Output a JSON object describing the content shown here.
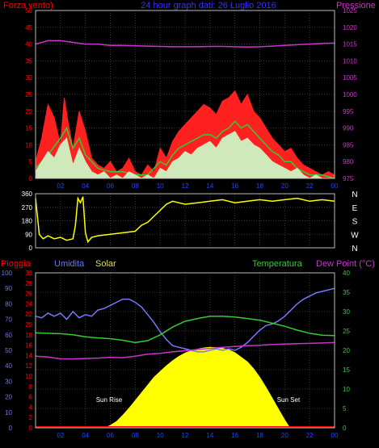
{
  "header": {
    "left_label": "Forza vento)",
    "title": "24 hour graph dati: 26 Luglio 2016",
    "right_label": "Pressione"
  },
  "colors": {
    "background": "#000000",
    "grid": "#3a3a3a",
    "wind_gust": "#ff2020",
    "wind_avg": "#33cc33",
    "wind_speed": "#ccffcc",
    "pressure": "#cc33cc",
    "direction": "#ffff00",
    "humidity": "#7777ff",
    "temperature": "#33cc33",
    "dew_point": "#cc33cc",
    "solar": "#ffff00",
    "rain": "#ff0000",
    "left_axis_text": "#ff0000",
    "right_axis_text": "#cc33cc",
    "title_text": "#3333ff",
    "humidity_axis_text": "#6677ff",
    "temp_axis_text": "#33cc33",
    "time_axis_text": "#2244ff"
  },
  "chart_data": [
    {
      "type": "line",
      "name": "wind-pressure",
      "x_ticks": [
        "02",
        "04",
        "06",
        "08",
        "10",
        "12",
        "14",
        "16",
        "18",
        "20",
        "22",
        "00"
      ],
      "y_left_ticks": [
        "0",
        "5",
        "10",
        "15",
        "20",
        "25",
        "30",
        "35",
        "40",
        "45",
        "50"
      ],
      "y_right_ticks": [
        "975",
        "980",
        "985",
        "990",
        "995",
        "1000",
        "1005",
        "1010",
        "1015",
        "1020",
        "1025"
      ],
      "y_left_range": [
        0,
        50
      ],
      "y_right_range": [
        975,
        1025
      ],
      "x_range": [
        0,
        24
      ],
      "series": [
        {
          "name": "Forza vento)",
          "axis": "left",
          "style": "gust",
          "x": [
            0,
            0.5,
            1,
            1.5,
            2,
            2.3,
            2.6,
            3,
            3.5,
            4,
            4.5,
            5,
            5.5,
            6,
            6.5,
            7,
            7.5,
            8,
            8.5,
            9,
            9.5,
            10,
            10.5,
            11,
            11.5,
            12,
            12.5,
            13,
            13.5,
            14,
            14.5,
            15,
            15.5,
            16,
            16.5,
            17,
            17.5,
            18,
            18.5,
            19,
            19.5,
            20,
            20.5,
            21,
            21.5,
            22,
            22.5,
            23,
            23.5,
            24
          ],
          "values": [
            5,
            12,
            22,
            18,
            10,
            24,
            17,
            9,
            20,
            14,
            6,
            4,
            3,
            5,
            2,
            3,
            6,
            2,
            1,
            4,
            2,
            9,
            6,
            11,
            14,
            16,
            18,
            20,
            22,
            21,
            19,
            23,
            24,
            26,
            22,
            25,
            20,
            18,
            15,
            12,
            10,
            8,
            9,
            6,
            4,
            3,
            2,
            1,
            2,
            1
          ]
        },
        {
          "name": "",
          "axis": "left",
          "style": "avg",
          "x": [
            0,
            1,
            2,
            2.5,
            3,
            3.5,
            4,
            5,
            6,
            7,
            8,
            9,
            10,
            10.5,
            11,
            11.5,
            12,
            12.5,
            13,
            13.5,
            14,
            14.5,
            15,
            15.5,
            16,
            16.5,
            17,
            17.5,
            18,
            18.5,
            19,
            19.5,
            20,
            20.5,
            21,
            21.5,
            22,
            23,
            24
          ],
          "values": [
            3,
            7,
            12,
            15,
            9,
            12,
            7,
            3,
            2,
            2,
            1,
            1,
            5,
            4,
            7,
            9,
            10,
            11,
            12,
            13,
            13,
            12,
            14,
            15,
            17,
            15,
            16,
            14,
            12,
            10,
            8,
            7,
            5,
            5,
            3,
            2,
            1,
            1,
            0
          ]
        },
        {
          "name": "",
          "axis": "left",
          "style": "speed",
          "x": [
            0,
            0.5,
            1,
            1.5,
            2,
            2.5,
            3,
            3.5,
            4,
            4.5,
            5,
            5.5,
            6,
            6.5,
            7,
            7.5,
            8,
            8.5,
            9,
            9.5,
            10,
            10.5,
            11,
            11.5,
            12,
            12.5,
            13,
            13.5,
            14,
            14.5,
            15,
            15.5,
            16,
            16.5,
            17,
            17.5,
            18,
            18.5,
            19,
            19.5,
            20,
            20.5,
            21,
            21.5,
            22,
            22.5,
            23,
            23.5,
            24
          ],
          "values": [
            2,
            5,
            8,
            6,
            10,
            12,
            4,
            9,
            5,
            2,
            1,
            2,
            0,
            1,
            0,
            2,
            1,
            0,
            1,
            0,
            3,
            2,
            5,
            6,
            8,
            7,
            9,
            10,
            11,
            9,
            12,
            13,
            14,
            11,
            12,
            10,
            9,
            7,
            5,
            4,
            3,
            2,
            3,
            1,
            0,
            1,
            0,
            0,
            0
          ]
        },
        {
          "name": "Pressione",
          "axis": "right",
          "style": "pressure",
          "x": [
            0,
            1,
            2,
            3,
            4,
            5,
            6,
            7,
            8,
            9,
            10,
            11,
            12,
            13,
            14,
            15,
            16,
            17,
            18,
            19,
            20,
            21,
            22,
            23,
            24
          ],
          "values": [
            1015,
            1016,
            1016,
            1015.5,
            1015,
            1015,
            1014.6,
            1014.6,
            1014.5,
            1014.4,
            1014.3,
            1014.2,
            1014.2,
            1014.2,
            1014.3,
            1014.3,
            1014.2,
            1014.1,
            1014.2,
            1014.4,
            1014.6,
            1014.8,
            1015,
            1015.2,
            1015.3
          ]
        }
      ]
    },
    {
      "type": "line",
      "name": "wind-direction",
      "x_range": [
        0,
        24
      ],
      "y_range": [
        0,
        360
      ],
      "y_left_ticks": [
        "0",
        "90",
        "180",
        "270",
        "360"
      ],
      "y_right_ticks": [
        "N",
        "W",
        "S",
        "E",
        "N"
      ],
      "series": [
        {
          "name": "",
          "style": "direction",
          "x": [
            0,
            0.3,
            0.6,
            1,
            1.5,
            2,
            2.5,
            3,
            3.2,
            3.4,
            3.6,
            3.8,
            4,
            4.2,
            4.5,
            5,
            6,
            7,
            8,
            8.5,
            9,
            9.5,
            10,
            10.5,
            11,
            11.5,
            12,
            13,
            14,
            15,
            16,
            17,
            18,
            19,
            20,
            21,
            22,
            23,
            24
          ],
          "values": [
            330,
            90,
            60,
            80,
            60,
            70,
            50,
            60,
            150,
            330,
            300,
            340,
            100,
            40,
            70,
            80,
            90,
            100,
            110,
            150,
            170,
            210,
            250,
            290,
            310,
            300,
            290,
            300,
            310,
            320,
            300,
            310,
            320,
            310,
            320,
            330,
            310,
            320,
            310
          ]
        }
      ]
    },
    {
      "type": "line",
      "name": "humidity-temperature-solar",
      "labels": {
        "rain": "Pioggia",
        "humidity": "Umidita",
        "solar": "Solar",
        "temperature": "Temperatura",
        "dew_point": "Dew Point (°C)"
      },
      "x_ticks": [
        "02",
        "04",
        "06",
        "08",
        "10",
        "12",
        "14",
        "16",
        "18",
        "20",
        "22",
        "00"
      ],
      "x_range": [
        0,
        24
      ],
      "humidity_ticks": [
        "0",
        "10",
        "20",
        "30",
        "40",
        "50",
        "60",
        "70",
        "80",
        "90",
        "100"
      ],
      "rain_ticks": [
        "0",
        "2",
        "4",
        "6",
        "8",
        "10",
        "12",
        "14",
        "16",
        "18",
        "20",
        "22",
        "24",
        "26",
        "28",
        "30"
      ],
      "temp_ticks": [
        "0",
        "5",
        "10",
        "15",
        "20",
        "25",
        "30",
        "35",
        "40"
      ],
      "humidity_range": [
        0,
        100
      ],
      "temp_range": [
        0,
        40
      ],
      "annotations": [
        {
          "text": "Sun Rise",
          "x": 5.9
        },
        {
          "text": "Sun Set",
          "x": 20.3
        }
      ],
      "series": [
        {
          "name": "Umidita",
          "axis": "humidity",
          "style": "humidity",
          "x": [
            0,
            0.5,
            1,
            1.5,
            2,
            2.5,
            3,
            3.5,
            4,
            4.5,
            5,
            5.5,
            6,
            6.5,
            7,
            7.5,
            8,
            8.5,
            9,
            9.5,
            10,
            10.5,
            11,
            11.5,
            12,
            12.5,
            13,
            13.5,
            14,
            14.5,
            15,
            15.5,
            16,
            16.5,
            17,
            17.5,
            18,
            18.5,
            19,
            19.5,
            20,
            20.5,
            21,
            21.5,
            22,
            22.5,
            23,
            23.5,
            24
          ],
          "values": [
            72,
            71,
            74,
            72,
            74,
            70,
            75,
            71,
            73,
            72,
            76,
            77,
            79,
            81,
            83,
            83,
            81,
            78,
            73,
            68,
            62,
            57,
            53,
            52,
            51,
            50,
            49,
            49,
            50,
            51,
            50,
            51,
            50,
            52,
            55,
            59,
            63,
            66,
            67,
            69,
            72,
            76,
            80,
            83,
            85,
            87,
            88,
            89,
            90
          ]
        },
        {
          "name": "Temperatura",
          "axis": "temp",
          "style": "temperature",
          "x": [
            0,
            1,
            2,
            3,
            4,
            5,
            6,
            7,
            8,
            9,
            10,
            11,
            12,
            13,
            14,
            15,
            16,
            17,
            18,
            19,
            20,
            21,
            22,
            23,
            24
          ],
          "values": [
            24.5,
            24.4,
            24.3,
            24,
            23.5,
            23.2,
            23,
            22.6,
            22,
            22.5,
            24,
            26,
            27.5,
            28.2,
            28.8,
            28.8,
            28.6,
            28.2,
            27.8,
            27,
            26.2,
            25.2,
            24.4,
            23.9,
            23.8
          ]
        },
        {
          "name": "Dew Point (°C)",
          "axis": "temp",
          "style": "dew",
          "x": [
            0,
            1,
            2,
            3,
            4,
            5,
            6,
            7,
            8,
            9,
            10,
            11,
            12,
            13,
            14,
            15,
            16,
            17,
            18,
            19,
            20,
            21,
            22,
            23,
            24
          ],
          "values": [
            18.5,
            18.3,
            17.8,
            17.8,
            17.9,
            18,
            18.2,
            18.1,
            18.5,
            19,
            19.2,
            19.6,
            19.9,
            20.2,
            20.5,
            20.8,
            21,
            21.2,
            21.3,
            21.5,
            21.6,
            21.7,
            21.8,
            21.9,
            22
          ]
        },
        {
          "name": "Solar",
          "axis": "temp",
          "style": "solar",
          "x": [
            5.6,
            6,
            6.5,
            7,
            7.5,
            8,
            8.5,
            9,
            9.5,
            10,
            10.5,
            11,
            11.5,
            12,
            12.5,
            13,
            13.5,
            14,
            14.5,
            15,
            15.5,
            16,
            16.5,
            17,
            17.5,
            18,
            18.5,
            19,
            19.5,
            20,
            20.4
          ],
          "values": [
            0,
            0.6,
            1.6,
            3.2,
            5,
            7,
            9,
            11,
            13,
            14.5,
            16,
            17.3,
            18.4,
            19.3,
            19.9,
            20.3,
            20.6,
            20.8,
            20.7,
            20.5,
            20.1,
            19.4,
            18.2,
            17,
            15.2,
            13,
            10.4,
            7.6,
            4.8,
            2,
            0
          ]
        },
        {
          "name": "Pioggia",
          "axis": "rain",
          "style": "rain",
          "x": [
            0,
            24
          ],
          "values": [
            0,
            0
          ]
        }
      ]
    }
  ]
}
